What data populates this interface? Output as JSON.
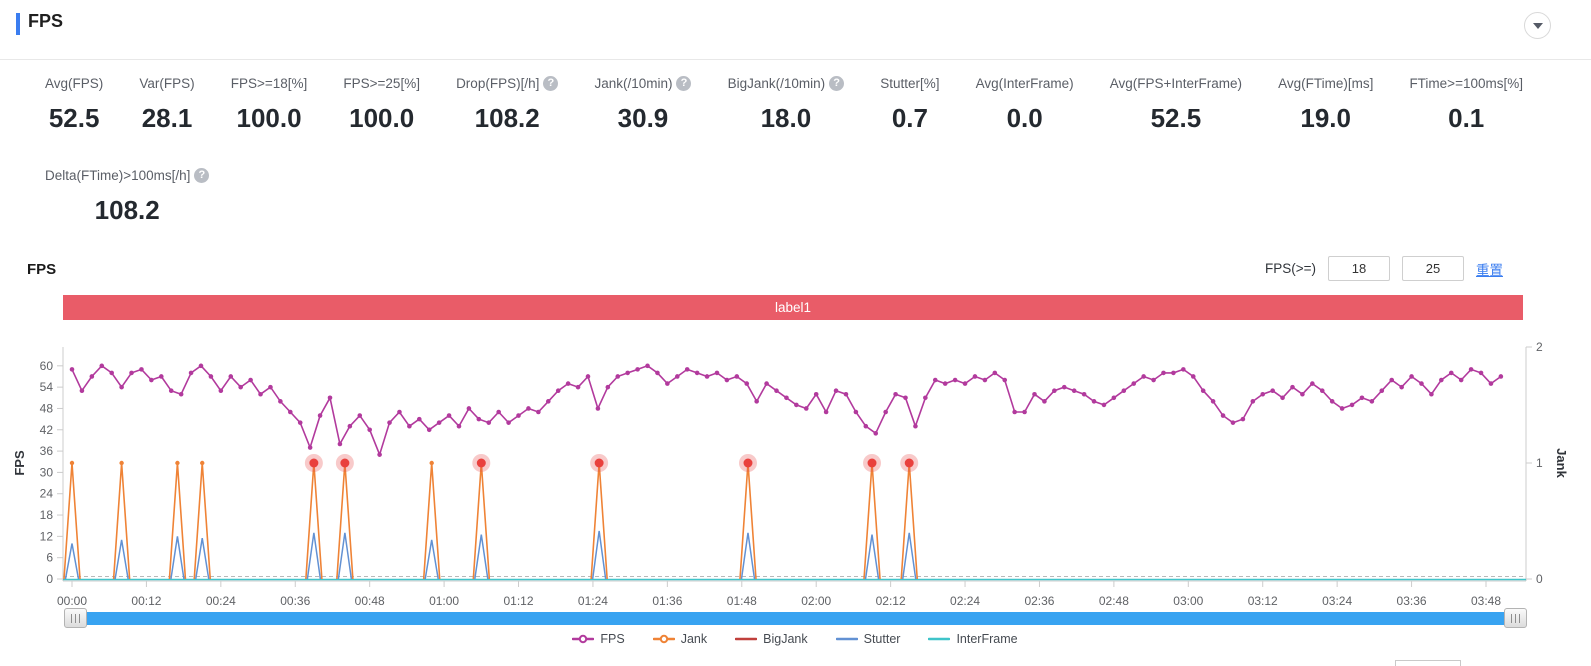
{
  "header": {
    "title": "FPS"
  },
  "metrics_row1": [
    {
      "label": "Avg(FPS)",
      "value": "52.5",
      "help": false
    },
    {
      "label": "Var(FPS)",
      "value": "28.1",
      "help": false
    },
    {
      "label": "FPS>=18[%]",
      "value": "100.0",
      "help": false
    },
    {
      "label": "FPS>=25[%]",
      "value": "100.0",
      "help": false
    },
    {
      "label": "Drop(FPS)[/h]",
      "value": "108.2",
      "help": true
    },
    {
      "label": "Jank(/10min)",
      "value": "30.9",
      "help": true
    },
    {
      "label": "BigJank(/10min)",
      "value": "18.0",
      "help": true
    },
    {
      "label": "Stutter[%]",
      "value": "0.7",
      "help": false
    },
    {
      "label": "Avg(InterFrame)",
      "value": "0.0",
      "help": false
    },
    {
      "label": "Avg(FPS+InterFrame)",
      "value": "52.5",
      "help": false
    },
    {
      "label": "Avg(FTime)[ms]",
      "value": "19.0",
      "help": false
    },
    {
      "label": "FTime>=100ms[%]",
      "value": "0.1",
      "help": false
    }
  ],
  "metrics_row2": [
    {
      "label": "Delta(FTime)>100ms[/h]",
      "value": "108.2",
      "help": true
    }
  ],
  "chart_section": {
    "title": "FPS",
    "filter": {
      "label": "FPS(>=)",
      "min": "18",
      "max": "25",
      "reset_label": "重置"
    },
    "banner": {
      "text": "label1",
      "color": "#e95c68"
    }
  },
  "chart_data": {
    "type": "line",
    "x_axis": {
      "labels": [
        "00:00",
        "00:12",
        "00:24",
        "00:36",
        "00:48",
        "01:00",
        "01:12",
        "01:24",
        "01:36",
        "01:48",
        "02:00",
        "02:12",
        "02:24",
        "02:36",
        "02:48",
        "03:00",
        "03:12",
        "03:24",
        "03:36",
        "03:48"
      ],
      "minutes_per_label": 12
    },
    "y_left": {
      "name": "FPS",
      "ticks": [
        0,
        6,
        12,
        18,
        24,
        30,
        36,
        42,
        48,
        54,
        60
      ]
    },
    "y_right": {
      "name": "Jank",
      "ticks": [
        0,
        1,
        2
      ]
    },
    "grid": "off",
    "legend_position": "bottom-center",
    "series": [
      {
        "name": "FPS",
        "type": "line-dot",
        "axis": "left",
        "color": "#b23a9d",
        "step_minutes": 1.6,
        "values": [
          59,
          53,
          57,
          60,
          58,
          54,
          58,
          59,
          56,
          57,
          53,
          52,
          58,
          60,
          57,
          53,
          57,
          54,
          56,
          52,
          54,
          50,
          47,
          44,
          37,
          46,
          51,
          38,
          43,
          46,
          42,
          35,
          44,
          47,
          43,
          45,
          42,
          44,
          46,
          43,
          48,
          45,
          44,
          47,
          44,
          46,
          48,
          47,
          50,
          53,
          55,
          54,
          57,
          48,
          54,
          57,
          58,
          59,
          60,
          58,
          55,
          57,
          59,
          58,
          57,
          58,
          56,
          57,
          55,
          50,
          55,
          53,
          51,
          49,
          48,
          52,
          47,
          53,
          52,
          47,
          43,
          41,
          47,
          52,
          51,
          43,
          51,
          56,
          55,
          56,
          55,
          57,
          56,
          58,
          56,
          47,
          47,
          52,
          50,
          53,
          54,
          53,
          52,
          50,
          49,
          51,
          53,
          55,
          57,
          56,
          58,
          58,
          59,
          57,
          53,
          50,
          46,
          44,
          45,
          50,
          52,
          53,
          51,
          54,
          52,
          55,
          53,
          50,
          48,
          49,
          51,
          50,
          53,
          56,
          54,
          57,
          55,
          52,
          56,
          58,
          56,
          59,
          58,
          55,
          57
        ]
      },
      {
        "name": "Jank",
        "type": "spike",
        "axis": "right",
        "color": "#ef8336",
        "peak_value": 1,
        "times_minutes": [
          0,
          8,
          17,
          21,
          39,
          44,
          58,
          66,
          85,
          109,
          129,
          135
        ]
      },
      {
        "name": "BigJank",
        "type": "event-marker",
        "axis": "right",
        "color": "#c0403c",
        "marker_color": "#e9403d",
        "value": 1,
        "times_minutes": [
          39,
          44,
          66,
          85,
          109,
          129,
          135
        ]
      },
      {
        "name": "Stutter",
        "type": "spike",
        "axis": "left",
        "color": "#6291d3",
        "times_minutes": [
          0,
          8,
          17,
          21,
          39,
          44,
          58,
          66,
          85,
          109,
          129,
          135
        ],
        "peaks": [
          10,
          11,
          12,
          11.5,
          13,
          13,
          11,
          12.5,
          13.5,
          13,
          12.5,
          13
        ]
      },
      {
        "name": "InterFrame",
        "type": "constant",
        "axis": "left",
        "color": "#3fc4c9",
        "value": 0
      }
    ],
    "legend": [
      {
        "name": "FPS",
        "color": "#b23a9d",
        "marker": "dot"
      },
      {
        "name": "Jank",
        "color": "#ef8336",
        "marker": "dot"
      },
      {
        "name": "BigJank",
        "color": "#c0403c",
        "marker": "line"
      },
      {
        "name": "Stutter",
        "color": "#6291d3",
        "marker": "line"
      },
      {
        "name": "InterFrame",
        "color": "#3fc4c9",
        "marker": "line"
      }
    ]
  },
  "colors": {
    "accent": "#3a7df0",
    "scrollbar": "#38a3f1",
    "axis_text": "#606266",
    "axis_line": "#cccccc"
  }
}
